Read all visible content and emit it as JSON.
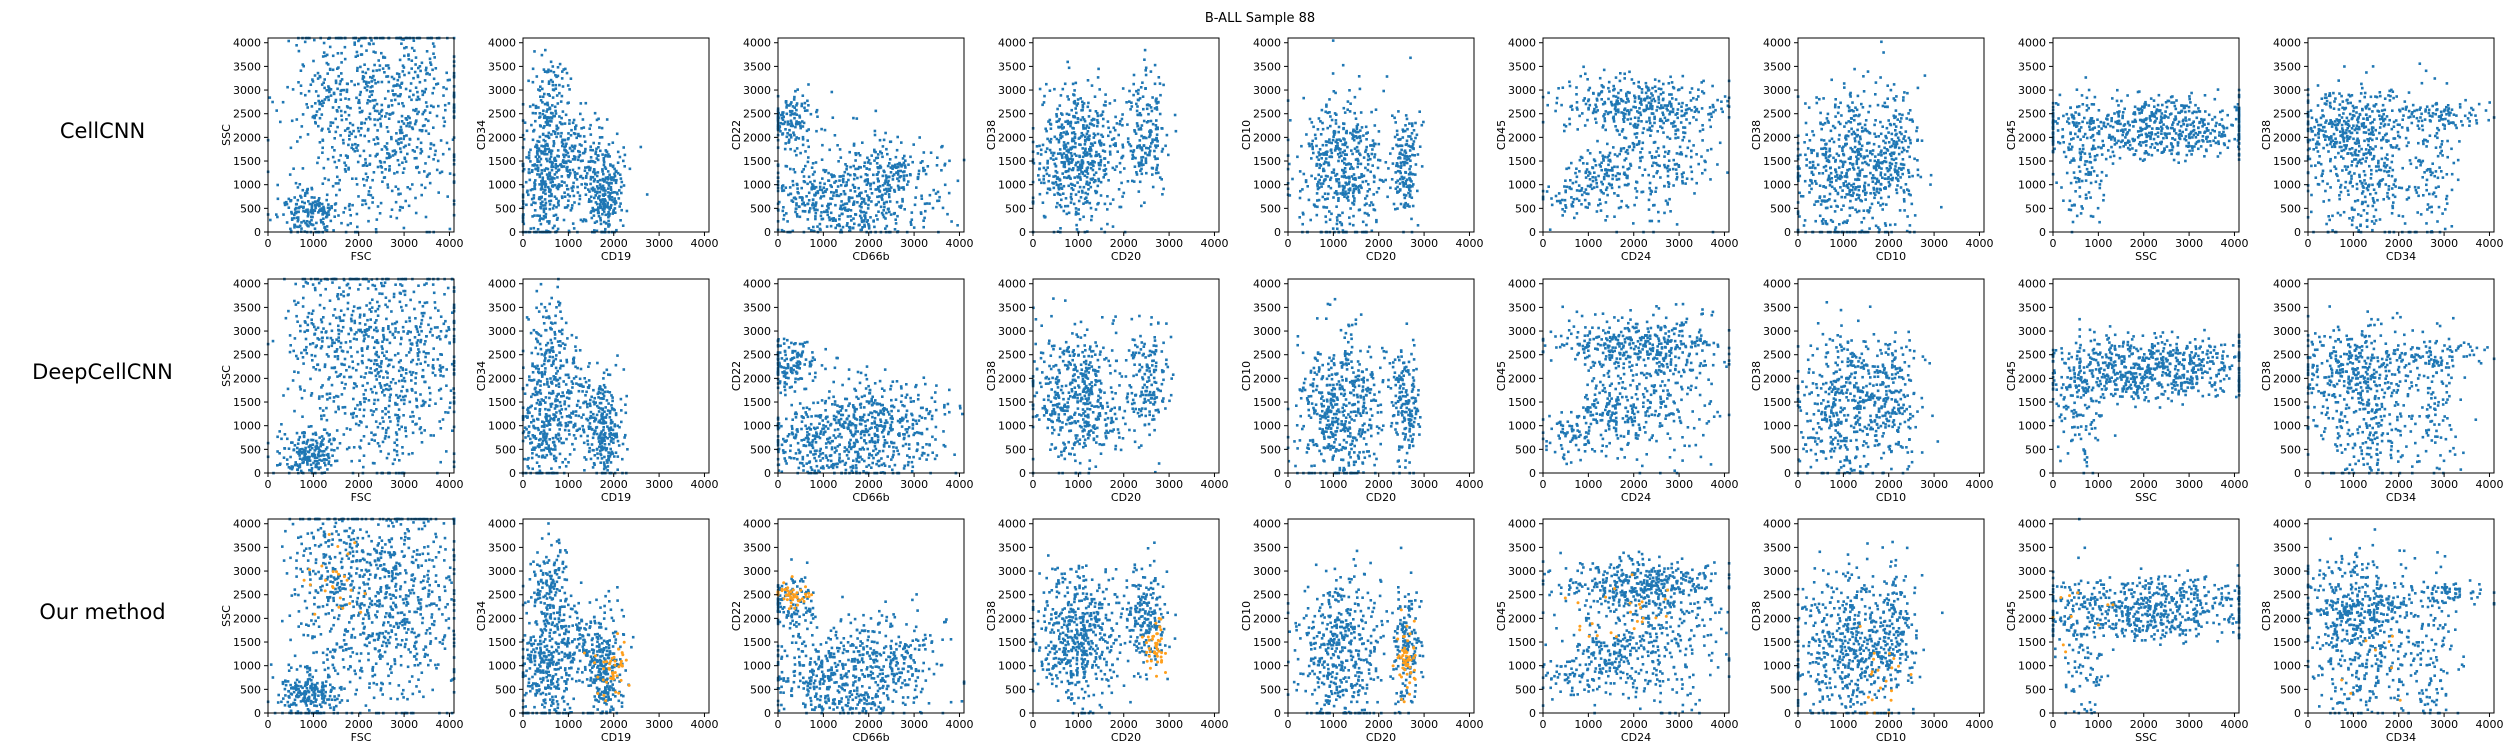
{
  "figure": {
    "suptitle": "B-ALL Sample 88",
    "rows": [
      "CellCNN",
      "DeepCellCNN",
      "Our method"
    ]
  },
  "chart_data": {
    "type": "scatter",
    "title": "B-ALL Sample 88",
    "grid": false,
    "series_colors": {
      "cells": "#1f77b4",
      "selected": "#ff9f1c"
    },
    "xlim": [
      0,
      4100
    ],
    "ylim": [
      0,
      4100
    ],
    "ticks": [
      0,
      500,
      1000,
      1500,
      2000,
      2500,
      3000,
      3500,
      4000
    ],
    "x_ticks": [
      0,
      1000,
      2000,
      3000,
      4000
    ],
    "panels": [
      {
        "xlabel": "FSC",
        "ylabel": "SSC"
      },
      {
        "xlabel": "CD19",
        "ylabel": "CD34"
      },
      {
        "xlabel": "CD66b",
        "ylabel": "CD22"
      },
      {
        "xlabel": "CD20",
        "ylabel": "CD38"
      },
      {
        "xlabel": "CD20",
        "ylabel": "CD10"
      },
      {
        "xlabel": "CD24",
        "ylabel": "CD45"
      },
      {
        "xlabel": "CD10",
        "ylabel": "CD38"
      },
      {
        "xlabel": "SSC",
        "ylabel": "CD45"
      },
      {
        "xlabel": "CD34",
        "ylabel": "CD38"
      }
    ],
    "populations": [
      [
        {
          "cx": 2900,
          "cy": 2700,
          "sx": 700,
          "sy": 1000,
          "n": 420
        },
        {
          "cx": 1400,
          "cy": 2900,
          "sx": 500,
          "sy": 900,
          "n": 220
        },
        {
          "cx": 900,
          "cy": 400,
          "sx": 350,
          "sy": 250,
          "n": 200
        },
        {
          "cx": 2500,
          "cy": 1300,
          "sx": 900,
          "sy": 800,
          "n": 200
        }
      ],
      [
        {
          "cx": 600,
          "cy": 2600,
          "sx": 250,
          "sy": 600,
          "n": 160
        },
        {
          "cx": 500,
          "cy": 900,
          "sx": 300,
          "sy": 600,
          "n": 260
        },
        {
          "cx": 1800,
          "cy": 800,
          "sx": 200,
          "sy": 500,
          "n": 220
        },
        {
          "cx": 1200,
          "cy": 1500,
          "sx": 500,
          "sy": 500,
          "n": 200
        }
      ],
      [
        {
          "cx": 300,
          "cy": 2300,
          "sx": 300,
          "sy": 300,
          "n": 140
        },
        {
          "cx": 2300,
          "cy": 1100,
          "sx": 700,
          "sy": 500,
          "n": 360
        },
        {
          "cx": 900,
          "cy": 800,
          "sx": 600,
          "sy": 400,
          "n": 240
        },
        {
          "cx": 1600,
          "cy": 200,
          "sx": 600,
          "sy": 150,
          "n": 80
        }
      ],
      [
        {
          "cx": 1000,
          "cy": 1600,
          "sx": 500,
          "sy": 700,
          "n": 520
        },
        {
          "cx": 2500,
          "cy": 2000,
          "sx": 250,
          "sy": 600,
          "n": 180
        }
      ],
      [
        {
          "cx": 1200,
          "cy": 1300,
          "sx": 500,
          "sy": 800,
          "n": 480
        },
        {
          "cx": 2600,
          "cy": 1400,
          "sx": 150,
          "sy": 600,
          "n": 160
        }
      ],
      [
        {
          "cx": 2100,
          "cy": 2700,
          "sx": 900,
          "sy": 300,
          "n": 380
        },
        {
          "cx": 2600,
          "cy": 1500,
          "sx": 600,
          "sy": 700,
          "n": 220
        },
        {
          "cx": 1500,
          "cy": 1300,
          "sx": 400,
          "sy": 300,
          "n": 120
        },
        {
          "cx": 700,
          "cy": 800,
          "sx": 400,
          "sy": 300,
          "n": 80
        }
      ],
      [
        {
          "cx": 1100,
          "cy": 1400,
          "sx": 600,
          "sy": 800,
          "n": 520
        },
        {
          "cx": 2100,
          "cy": 1700,
          "sx": 300,
          "sy": 700,
          "n": 160
        }
      ],
      [
        {
          "cx": 2100,
          "cy": 2400,
          "sx": 1200,
          "sy": 250,
          "n": 380
        },
        {
          "cx": 2300,
          "cy": 1900,
          "sx": 1100,
          "sy": 200,
          "n": 240
        },
        {
          "cx": 600,
          "cy": 1400,
          "sx": 300,
          "sy": 700,
          "n": 120
        }
      ],
      [
        {
          "cx": 1000,
          "cy": 2200,
          "sx": 600,
          "sy": 500,
          "n": 360
        },
        {
          "cx": 1300,
          "cy": 900,
          "sx": 600,
          "sy": 600,
          "n": 200
        },
        {
          "cx": 2800,
          "cy": 1400,
          "sx": 300,
          "sy": 800,
          "n": 100
        },
        {
          "cx": 2900,
          "cy": 2500,
          "sx": 600,
          "sy": 150,
          "n": 80
        }
      ]
    ],
    "selected": [
      {
        "cx": 1500,
        "cy": 2700,
        "sx": 350,
        "sy": 500,
        "n": 25
      },
      {
        "cx": 1900,
        "cy": 900,
        "sx": 200,
        "sy": 300,
        "n": 45
      },
      {
        "cx": 300,
        "cy": 2500,
        "sx": 200,
        "sy": 150,
        "n": 45
      },
      {
        "cx": 2700,
        "cy": 1500,
        "sx": 120,
        "sy": 300,
        "n": 45
      },
      {
        "cx": 2600,
        "cy": 1200,
        "sx": 120,
        "sy": 400,
        "n": 50
      },
      {
        "cx": 1800,
        "cy": 2200,
        "sx": 600,
        "sy": 400,
        "n": 25
      },
      {
        "cx": 1700,
        "cy": 600,
        "sx": 400,
        "sy": 400,
        "n": 20
      },
      {
        "cx": 500,
        "cy": 2000,
        "sx": 400,
        "sy": 400,
        "n": 10
      },
      {
        "cx": 1500,
        "cy": 1500,
        "sx": 500,
        "sy": 500,
        "n": 8
      }
    ]
  }
}
